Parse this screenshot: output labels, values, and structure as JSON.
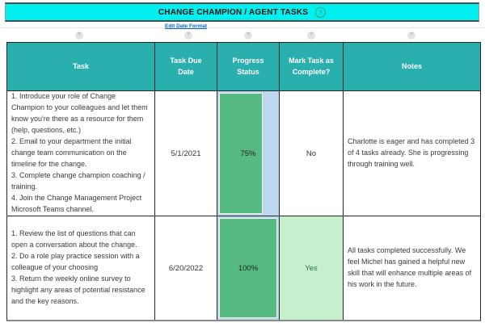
{
  "banner": {
    "title": "CHANGE CHAMPION / AGENT TASKS",
    "help_glyph": "?"
  },
  "toolbar": {
    "edit_date_format_label": "Edit Date Format"
  },
  "icons": {
    "help_glyph": "?"
  },
  "table": {
    "headers": [
      "Task",
      "Task Due Date",
      "Progress Status",
      "Mark Task as Complete?",
      "Notes"
    ],
    "rows": [
      {
        "task": "1. Introduce your role of Change Champion to your colleagues and let them know you're there as a resource for them (help, questions, etc.)\n2. Email to your department the initial change team communication on the timeline for the change.\n3. Complete change champion coaching / training.\n4. Join the Change Management Project Microsoft Teams channel.",
        "due_date": "5/1/2021",
        "progress_label": "75%",
        "progress_value": 75,
        "complete": "No",
        "notes": "Charlotte is eager and has completed 3 of 4 tasks already. She is progressing through training well."
      },
      {
        "task": "1. Review the list of questions that can open a conversation about the change.\n2. Do a role play practice session with a colleague of your choosing\n3. Return the weekly online survey to highlight any areas of potential resistance and the key reasons.",
        "due_date": "6/20/2022",
        "progress_label": "100%",
        "progress_value": 100,
        "complete": "Yes",
        "notes": "All tasks completed successfully. We feel Michel has gained a helpful new skill that will enhance multiple areas of his work in the future."
      }
    ]
  },
  "colors": {
    "banner_cyan": "#00F0F0",
    "header_teal": "#2AAFAF",
    "bar_green": "#57BB81",
    "progress_track_blue": "#BDD7EE",
    "complete_green_bg": "#C6EFCE",
    "complete_green_text": "#2F6C4F",
    "link_blue": "#0563C1"
  }
}
